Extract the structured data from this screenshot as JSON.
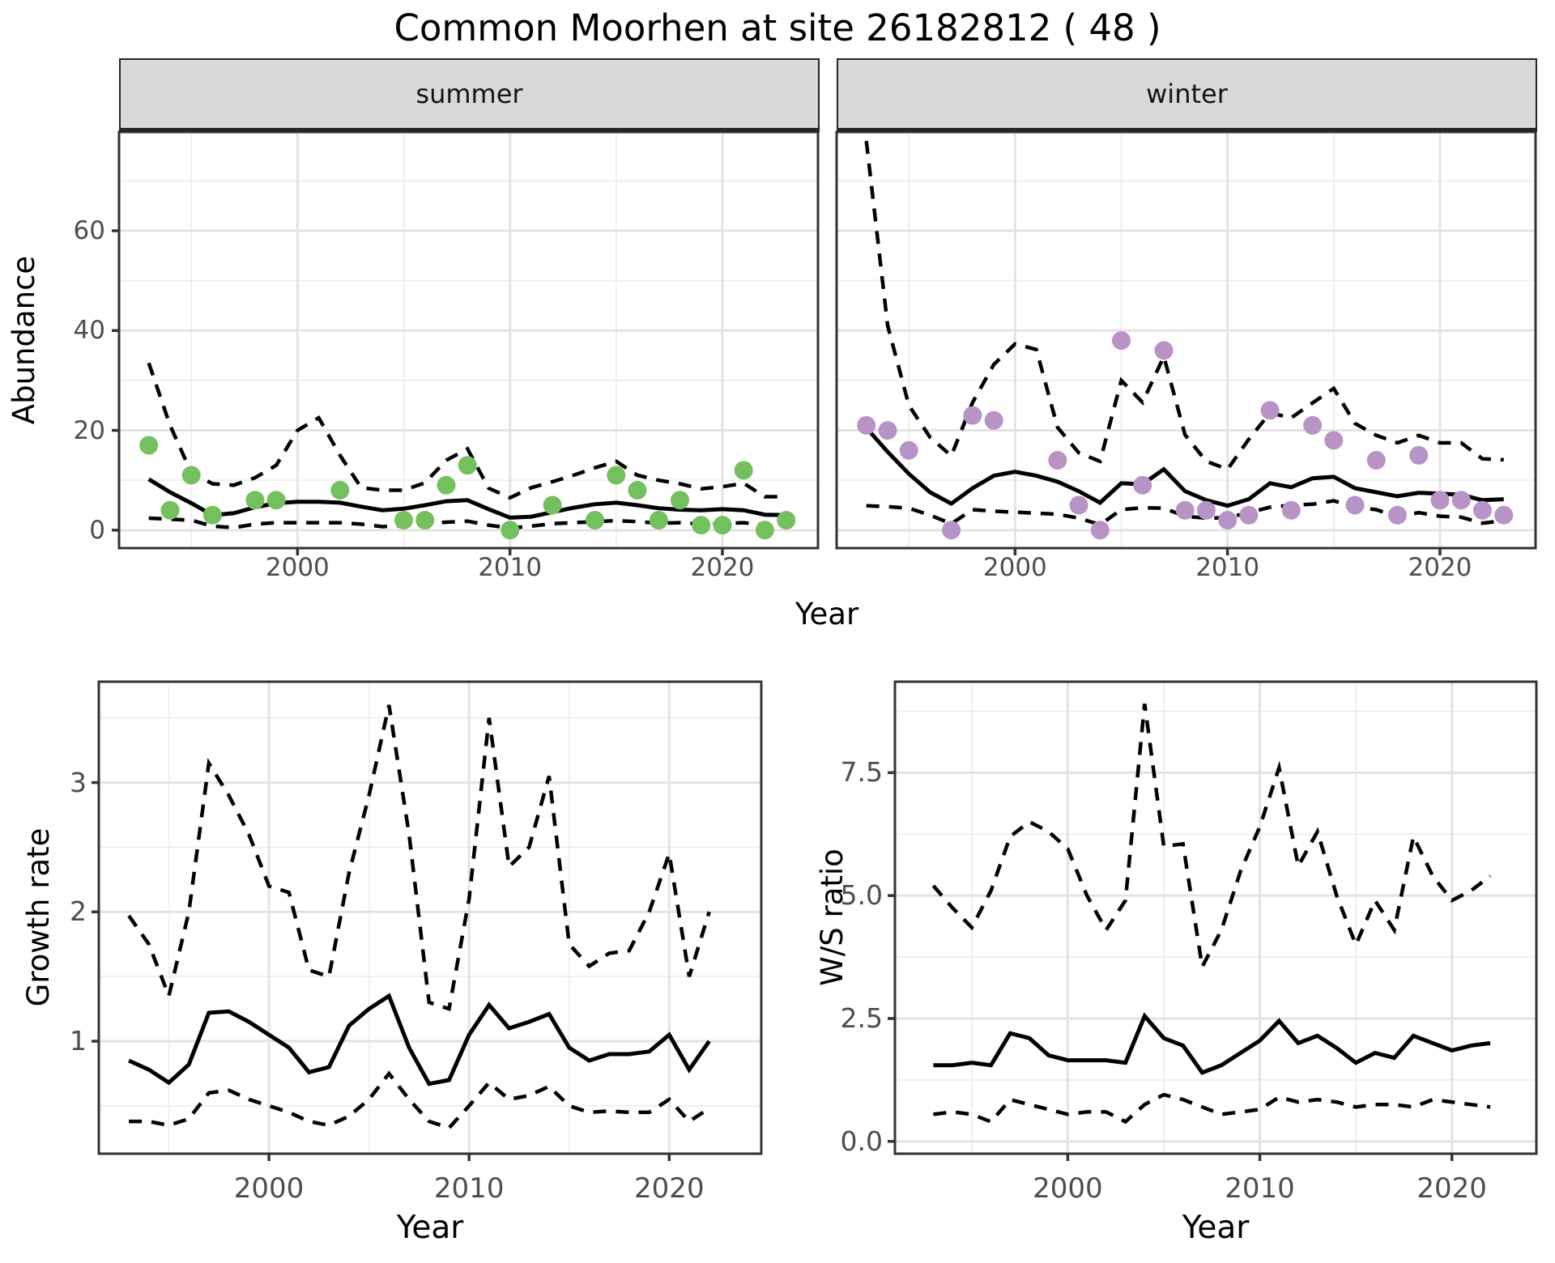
{
  "title": "Common Moorhen at site 26182812 ( 48 )",
  "colors": {
    "summer_point": "#74c05e",
    "winter_point": "#b793c6",
    "fit_line": "#000000",
    "ci_line": "#000000",
    "strip_bg": "#d9d9d9",
    "grid_major": "#e3e3e3",
    "grid_minor": "#efefef",
    "panel_border": "#333333",
    "tick_text": "#4d4d4d"
  },
  "chart_data": [
    {
      "id": "abundance-summer",
      "type": "line",
      "facet": "summer",
      "title": "Common Moorhen at site 26182812 ( 48 )",
      "xlabel": "Year",
      "ylabel": "Abundance",
      "xlim": [
        1991.6,
        2024.5
      ],
      "ylim": [
        -3.6,
        79.8
      ],
      "grid": "on",
      "legend": "none",
      "x_tick_labels": [
        "2000",
        "2010",
        "2020"
      ],
      "x_major_ticks": [
        2000,
        2010,
        2020
      ],
      "x_minor_ticks": [
        1995,
        2005,
        2015
      ],
      "y_tick_labels": [
        "0",
        "20",
        "40",
        "60"
      ],
      "y_major_ticks": [
        0,
        20,
        40,
        60
      ],
      "y_minor_ticks": [
        10,
        30,
        50,
        70
      ],
      "points": {
        "years": [
          1993,
          1994,
          1995,
          1996,
          1998,
          1999,
          2002,
          2005,
          2006,
          2007,
          2008,
          2010,
          2012,
          2014,
          2015,
          2016,
          2017,
          2018,
          2019,
          2020,
          2021,
          2022,
          2023
        ],
        "values": [
          17,
          4,
          11,
          3,
          6,
          6,
          8,
          2,
          2,
          9,
          13,
          0,
          5,
          2,
          11,
          8,
          2,
          6,
          1,
          1,
          12,
          0,
          2
        ]
      },
      "fit": {
        "years": [
          1993,
          1994,
          1995,
          1996,
          1997,
          1998,
          1999,
          2000,
          2001,
          2002,
          2003,
          2004,
          2005,
          2006,
          2007,
          2008,
          2009,
          2010,
          2011,
          2012,
          2013,
          2014,
          2015,
          2016,
          2017,
          2018,
          2019,
          2020,
          2021,
          2022,
          2023
        ],
        "values": [
          10.2,
          7.6,
          5.4,
          3.0,
          3.4,
          4.6,
          5.4,
          5.7,
          5.7,
          5.5,
          4.7,
          4.0,
          4.3,
          5.0,
          5.8,
          6.0,
          4.2,
          2.5,
          2.7,
          3.6,
          4.5,
          5.2,
          5.5,
          5.0,
          4.4,
          4.1,
          4.0,
          4.2,
          4.0,
          3.1,
          3.0
        ]
      },
      "upper": {
        "years": [
          1993,
          1994,
          1995,
          1996,
          1997,
          1998,
          1999,
          2000,
          2001,
          2002,
          2003,
          2004,
          2005,
          2006,
          2007,
          2008,
          2009,
          2010,
          2011,
          2012,
          2013,
          2014,
          2015,
          2016,
          2017,
          2018,
          2019,
          2020,
          2021,
          2022,
          2023
        ],
        "values": [
          33.5,
          21,
          11.5,
          9.3,
          9.0,
          10.5,
          13,
          20,
          22.5,
          15,
          8.5,
          8.0,
          8.0,
          9.5,
          14,
          16.3,
          8.4,
          6.5,
          8.5,
          9.7,
          11,
          12.5,
          13.8,
          11,
          10,
          9.3,
          8.3,
          8.7,
          9.4,
          6.7,
          6.7
        ]
      },
      "lower": {
        "years": [
          1993,
          1994,
          1995,
          1996,
          1997,
          1998,
          1999,
          2000,
          2001,
          2002,
          2003,
          2004,
          2005,
          2006,
          2007,
          2008,
          2009,
          2010,
          2011,
          2012,
          2013,
          2014,
          2015,
          2016,
          2017,
          2018,
          2019,
          2020,
          2021,
          2022,
          2023
        ],
        "values": [
          2.4,
          2.2,
          2.0,
          0.8,
          0.5,
          1.2,
          1.5,
          1.5,
          1.5,
          1.5,
          1.2,
          0.7,
          1.0,
          1.3,
          1.6,
          1.8,
          1.0,
          0.4,
          0.8,
          1.3,
          1.5,
          1.7,
          1.9,
          1.7,
          1.4,
          1.5,
          1.2,
          1.3,
          1.5,
          1.0,
          0.8
        ]
      },
      "point_color": "#74c05e"
    },
    {
      "id": "abundance-winter",
      "type": "line",
      "facet": "winter",
      "xlabel": "Year",
      "ylabel": "Abundance",
      "xlim": [
        1991.6,
        2024.5
      ],
      "ylim": [
        -3.6,
        79.8
      ],
      "grid": "on",
      "legend": "none",
      "x_tick_labels": [
        "2000",
        "2010",
        "2020"
      ],
      "x_major_ticks": [
        2000,
        2010,
        2020
      ],
      "x_minor_ticks": [
        1995,
        2005,
        2015
      ],
      "y_tick_labels": [],
      "y_major_ticks": [
        0,
        20,
        40,
        60
      ],
      "y_minor_ticks": [
        10,
        30,
        50,
        70
      ],
      "points": {
        "years": [
          1993,
          1994,
          1995,
          1997,
          1998,
          1999,
          2002,
          2003,
          2004,
          2005,
          2006,
          2007,
          2008,
          2009,
          2010,
          2011,
          2012,
          2013,
          2014,
          2015,
          2016,
          2017,
          2018,
          2019,
          2020,
          2021,
          2022,
          2023
        ],
        "values": [
          21,
          20,
          16,
          0,
          23,
          22,
          14,
          5,
          0,
          38,
          9,
          36,
          4,
          4,
          2,
          3,
          24,
          4,
          21,
          18,
          5,
          14,
          3,
          15,
          6,
          6,
          4,
          3
        ]
      },
      "fit": {
        "years": [
          1993,
          1994,
          1995,
          1996,
          1997,
          1998,
          1999,
          2000,
          2001,
          2002,
          2003,
          2004,
          2005,
          2006,
          2007,
          2008,
          2009,
          2010,
          2011,
          2012,
          2013,
          2014,
          2015,
          2016,
          2017,
          2018,
          2019,
          2020,
          2021,
          2022,
          2023
        ],
        "values": [
          20.5,
          15.7,
          11.3,
          7.6,
          5.3,
          8.4,
          10.9,
          11.7,
          10.9,
          9.7,
          7.8,
          5.5,
          9.4,
          9.2,
          12.2,
          7.8,
          6.0,
          4.9,
          6.2,
          9.4,
          8.6,
          10.4,
          10.7,
          8.4,
          7.6,
          6.8,
          7.5,
          7.3,
          7.1,
          6.0,
          6.2
        ]
      },
      "upper": {
        "years": [
          1993,
          1994,
          1995,
          1996,
          1997,
          1998,
          1999,
          2000,
          2001,
          2002,
          2003,
          2004,
          2005,
          2006,
          2007,
          2008,
          2009,
          2010,
          2011,
          2012,
          2013,
          2014,
          2015,
          2016,
          2017,
          2018,
          2019,
          2020,
          2021,
          2022,
          2023
        ],
        "values": [
          78,
          41,
          25,
          18.6,
          14.9,
          25.6,
          33.2,
          37.3,
          36.2,
          20.6,
          15.5,
          13.8,
          30,
          25.6,
          34.8,
          19.1,
          13.8,
          12.2,
          18.2,
          23.5,
          22.5,
          25.5,
          28.4,
          21.4,
          19,
          17.5,
          19,
          17.5,
          17.5,
          14.3,
          14.1
        ]
      },
      "lower": {
        "years": [
          1993,
          1994,
          1995,
          1996,
          1997,
          1998,
          1999,
          2000,
          2001,
          2002,
          2003,
          2004,
          2005,
          2006,
          2007,
          2008,
          2009,
          2010,
          2011,
          2012,
          2013,
          2014,
          2015,
          2016,
          2017,
          2018,
          2019,
          2020,
          2021,
          2022,
          2023
        ],
        "values": [
          4.9,
          4.7,
          4.4,
          3.0,
          1.3,
          4.1,
          3.8,
          3.6,
          3.4,
          3.2,
          2.4,
          1.1,
          4.1,
          4.5,
          4.4,
          2.8,
          2.4,
          2.5,
          3.5,
          4.6,
          5.0,
          5.2,
          5.9,
          4.6,
          4.1,
          2.7,
          3.5,
          2.8,
          2.6,
          1.4,
          1.9
        ]
      },
      "point_color": "#b793c6"
    },
    {
      "id": "growth-rate",
      "type": "line",
      "facet": "",
      "xlabel": "Year",
      "ylabel": "Growth rate",
      "xlim": [
        1991.5,
        2024.6
      ],
      "ylim": [
        0.13,
        3.78
      ],
      "grid": "on",
      "legend": "none",
      "x_tick_labels": [
        "2000",
        "2010",
        "2020"
      ],
      "x_major_ticks": [
        2000,
        2010,
        2020
      ],
      "x_minor_ticks": [
        1995,
        2005,
        2015
      ],
      "y_tick_labels": [
        "1",
        "2",
        "3"
      ],
      "y_major_ticks": [
        1,
        2,
        3
      ],
      "y_minor_ticks": [
        0.5,
        1.5,
        2.5,
        3.5
      ],
      "fit": {
        "years": [
          1993,
          1994,
          1995,
          1996,
          1997,
          1998,
          1999,
          2000,
          2001,
          2002,
          2003,
          2004,
          2005,
          2006,
          2007,
          2008,
          2009,
          2010,
          2011,
          2012,
          2013,
          2014,
          2015,
          2016,
          2017,
          2018,
          2019,
          2020,
          2021,
          2022
        ],
        "values": [
          0.85,
          0.78,
          0.68,
          0.82,
          1.22,
          1.23,
          1.15,
          1.05,
          0.95,
          0.76,
          0.8,
          1.12,
          1.25,
          1.35,
          0.95,
          0.67,
          0.7,
          1.05,
          1.28,
          1.1,
          1.15,
          1.21,
          0.95,
          0.85,
          0.9,
          0.9,
          0.92,
          1.05,
          0.78,
          1.0
        ]
      },
      "upper": {
        "years": [
          1993,
          1994,
          1995,
          1996,
          1997,
          1998,
          1999,
          2000,
          2001,
          2002,
          2003,
          2004,
          2005,
          2006,
          2007,
          2008,
          2009,
          2010,
          2011,
          2012,
          2013,
          2014,
          2015,
          2016,
          2017,
          2018,
          2019,
          2020,
          2021,
          2022
        ],
        "values": [
          1.97,
          1.75,
          1.35,
          2.0,
          3.15,
          2.9,
          2.6,
          2.2,
          2.15,
          1.55,
          1.5,
          2.3,
          2.9,
          3.6,
          2.6,
          1.3,
          1.25,
          2.1,
          3.5,
          2.35,
          2.5,
          3.05,
          1.75,
          1.58,
          1.68,
          1.7,
          2.0,
          2.45,
          1.5,
          2.0
        ]
      },
      "lower": {
        "years": [
          1993,
          1994,
          1995,
          1996,
          1997,
          1998,
          1999,
          2000,
          2001,
          2002,
          2003,
          2004,
          2005,
          2006,
          2007,
          2008,
          2009,
          2010,
          2011,
          2012,
          2013,
          2014,
          2015,
          2016,
          2017,
          2018,
          2019,
          2020,
          2021,
          2022
        ],
        "values": [
          0.38,
          0.38,
          0.35,
          0.4,
          0.6,
          0.62,
          0.55,
          0.5,
          0.45,
          0.38,
          0.35,
          0.42,
          0.55,
          0.75,
          0.55,
          0.38,
          0.33,
          0.5,
          0.68,
          0.55,
          0.58,
          0.65,
          0.5,
          0.45,
          0.46,
          0.45,
          0.45,
          0.55,
          0.38,
          0.48
        ]
      }
    },
    {
      "id": "ws-ratio",
      "type": "line",
      "facet": "",
      "xlabel": "Year",
      "ylabel": "W/S ratio",
      "xlim": [
        1991.0,
        2024.4
      ],
      "ylim": [
        -0.25,
        9.35
      ],
      "grid": "on",
      "legend": "none",
      "x_tick_labels": [
        "2000",
        "2010",
        "2020"
      ],
      "x_major_ticks": [
        2000,
        2010,
        2020
      ],
      "x_minor_ticks": [
        1995,
        2005,
        2015
      ],
      "y_tick_labels": [
        "0.0",
        "2.5",
        "5.0",
        "7.5"
      ],
      "y_major_ticks": [
        0,
        2.5,
        5,
        7.5
      ],
      "y_minor_ticks": [
        1.25,
        3.75,
        6.25,
        8.75
      ],
      "fit": {
        "years": [
          1993,
          1994,
          1995,
          1996,
          1997,
          1998,
          1999,
          2000,
          2001,
          2002,
          2003,
          2004,
          2005,
          2006,
          2007,
          2008,
          2009,
          2010,
          2011,
          2012,
          2013,
          2014,
          2015,
          2016,
          2017,
          2018,
          2019,
          2020,
          2021,
          2022
        ],
        "values": [
          1.55,
          1.55,
          1.6,
          1.55,
          2.2,
          2.1,
          1.75,
          1.65,
          1.65,
          1.65,
          1.6,
          2.55,
          2.1,
          1.95,
          1.4,
          1.55,
          1.8,
          2.05,
          2.45,
          2.0,
          2.15,
          1.9,
          1.6,
          1.8,
          1.7,
          2.15,
          2.0,
          1.85,
          1.95,
          2.0
        ]
      },
      "upper": {
        "years": [
          1993,
          1994,
          1995,
          1996,
          1997,
          1998,
          1999,
          2000,
          2001,
          2002,
          2003,
          2004,
          2005,
          2006,
          2007,
          2008,
          2009,
          2010,
          2011,
          2012,
          2013,
          2014,
          2015,
          2016,
          2017,
          2018,
          2019,
          2020,
          2021,
          2022
        ],
        "values": [
          5.2,
          4.75,
          4.35,
          5.1,
          6.2,
          6.5,
          6.3,
          5.95,
          5.0,
          4.3,
          4.9,
          8.9,
          6.0,
          6.05,
          3.55,
          4.3,
          5.5,
          6.4,
          7.6,
          5.6,
          6.3,
          5.0,
          4.0,
          4.9,
          4.3,
          6.2,
          5.4,
          4.9,
          5.1,
          5.4
        ]
      },
      "lower": {
        "years": [
          1993,
          1994,
          1995,
          1996,
          1997,
          1998,
          1999,
          2000,
          2001,
          2002,
          2003,
          2004,
          2005,
          2006,
          2007,
          2008,
          2009,
          2010,
          2011,
          2012,
          2013,
          2014,
          2015,
          2016,
          2017,
          2018,
          2019,
          2020,
          2021,
          2022
        ],
        "values": [
          0.55,
          0.6,
          0.55,
          0.4,
          0.85,
          0.75,
          0.65,
          0.55,
          0.6,
          0.6,
          0.4,
          0.75,
          0.95,
          0.85,
          0.7,
          0.55,
          0.6,
          0.65,
          0.9,
          0.8,
          0.85,
          0.8,
          0.7,
          0.75,
          0.75,
          0.7,
          0.85,
          0.8,
          0.75,
          0.7
        ]
      }
    }
  ]
}
